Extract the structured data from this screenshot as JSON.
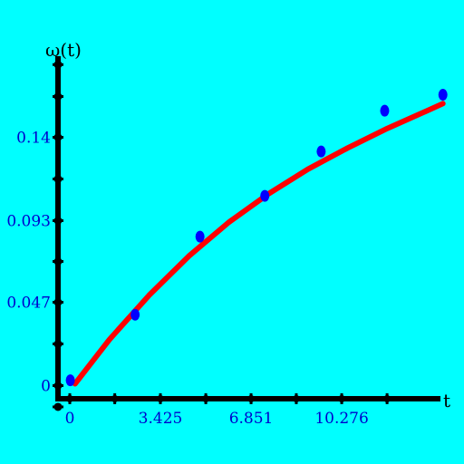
{
  "chart_data": {
    "type": "scatter",
    "xlabel": "t",
    "ylabel": "ω(t)",
    "xlim": [
      -0.5,
      14
    ],
    "ylim": [
      -0.012,
      0.185
    ],
    "x_ticks": [
      {
        "value": 0,
        "label": "0"
      },
      {
        "value": 3.425,
        "label": "3.425"
      },
      {
        "value": 6.851,
        "label": "6.851"
      },
      {
        "value": 10.276,
        "label": "10.276"
      }
    ],
    "y_ticks": [
      {
        "value": 0,
        "label": "0"
      },
      {
        "value": 0.047,
        "label": "0.047"
      },
      {
        "value": 0.093,
        "label": "0.093"
      },
      {
        "value": 0.14,
        "label": "0.14"
      }
    ],
    "x_minor_ticks": [
      1.7,
      5.14,
      8.56,
      11.99
    ],
    "y_minor_ticks": [
      -0.012,
      0.0235,
      0.07,
      0.1165,
      0.163,
      0.181
    ],
    "series": [
      {
        "kind": "points",
        "x": [
          0.02,
          2.47,
          4.92,
          7.37,
          9.5,
          11.9,
          14.1
        ],
        "y": [
          0.003,
          0.04,
          0.084,
          0.107,
          0.132,
          0.155,
          0.164
        ]
      },
      {
        "kind": "fit-curve",
        "x": [
          0.2,
          1.5,
          3.0,
          4.5,
          6.0,
          7.5,
          9.0,
          10.5,
          12.0,
          13.5,
          14.1
        ],
        "y": [
          0.001,
          0.026,
          0.051,
          0.073,
          0.092,
          0.108,
          0.122,
          0.134,
          0.145,
          0.155,
          0.159
        ]
      }
    ],
    "colors": {
      "background": "#00ffff",
      "axis": "#000000",
      "points": "#0000ff",
      "curve": "#ff0000",
      "tick_labels": "#0000cc"
    },
    "grid": false
  }
}
